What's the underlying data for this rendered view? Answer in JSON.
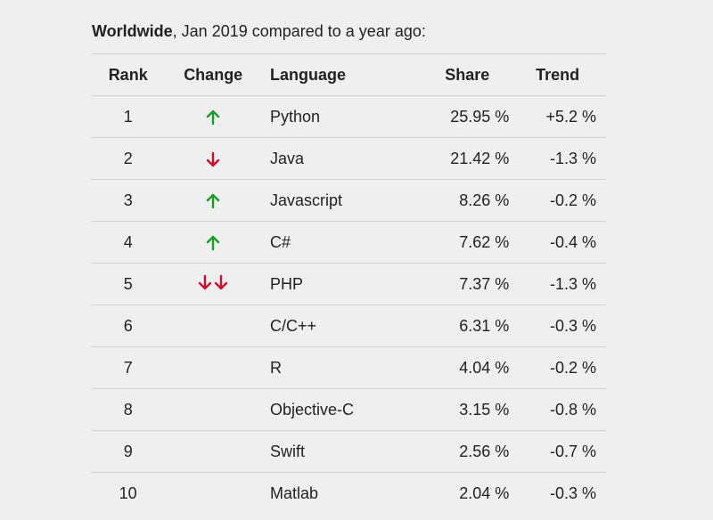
{
  "heading": {
    "bold": "Worldwide",
    "rest": ", Jan 2019 compared to a year ago:"
  },
  "columns": {
    "rank": "Rank",
    "change": "Change",
    "language": "Language",
    "share": "Share",
    "trend": "Trend"
  },
  "colors": {
    "up": "#1a9b2a",
    "down": "#c8102e"
  },
  "rows": [
    {
      "rank": "1",
      "change": "up",
      "language": "Python",
      "share": "25.95 %",
      "trend": "+5.2 %"
    },
    {
      "rank": "2",
      "change": "down",
      "language": "Java",
      "share": "21.42 %",
      "trend": "-1.3 %"
    },
    {
      "rank": "3",
      "change": "up",
      "language": "Javascript",
      "share": "8.26 %",
      "trend": "-0.2 %"
    },
    {
      "rank": "4",
      "change": "up",
      "language": "C#",
      "share": "7.62 %",
      "trend": "-0.4 %"
    },
    {
      "rank": "5",
      "change": "double-down",
      "language": "PHP",
      "share": "7.37 %",
      "trend": "-1.3 %"
    },
    {
      "rank": "6",
      "change": "none",
      "language": "C/C++",
      "share": "6.31 %",
      "trend": "-0.3 %"
    },
    {
      "rank": "7",
      "change": "none",
      "language": "R",
      "share": "4.04 %",
      "trend": "-0.2 %"
    },
    {
      "rank": "8",
      "change": "none",
      "language": "Objective-C",
      "share": "3.15 %",
      "trend": "-0.8 %"
    },
    {
      "rank": "9",
      "change": "none",
      "language": "Swift",
      "share": "2.56 %",
      "trend": "-0.7 %"
    },
    {
      "rank": "10",
      "change": "none",
      "language": "Matlab",
      "share": "2.04 %",
      "trend": "-0.3 %"
    }
  ]
}
